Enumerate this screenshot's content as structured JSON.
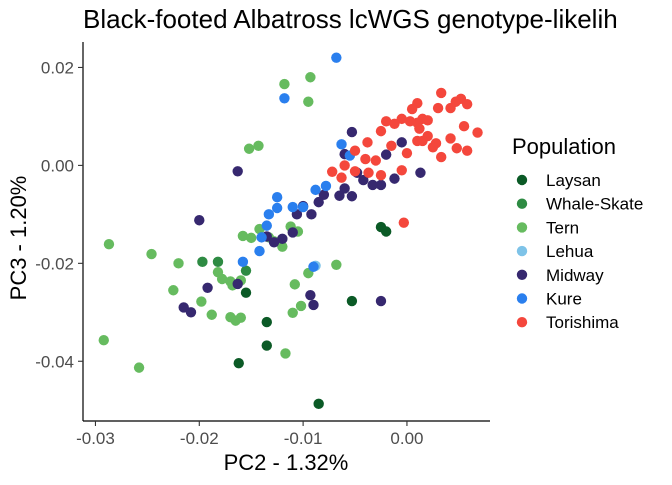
{
  "chart_data": {
    "type": "scatter",
    "title": "Black-footed Albatross lcWGS genotype-likelih",
    "xlabel": "PC2 - 1.32%",
    "ylabel": "PC3 - 1.20%",
    "xlim": [
      -0.0312,
      0.008
    ],
    "ylim": [
      -0.0522,
      0.0252
    ],
    "x_ticks": [
      -0.03,
      -0.02,
      -0.01,
      0.0
    ],
    "x_tick_labels": [
      "-0.03",
      "-0.02",
      "-0.01",
      "0.00"
    ],
    "y_ticks": [
      -0.04,
      -0.02,
      0.0,
      0.02
    ],
    "y_tick_labels": [
      "-0.04",
      "-0.02",
      "0.00",
      "0.02"
    ],
    "grid": false,
    "legend": {
      "title": "Population",
      "position": "right"
    },
    "series": [
      {
        "name": "Laysan",
        "color": "#0b5a26",
        "points": [
          [
            -0.0162,
            -0.0404
          ],
          [
            -0.0135,
            -0.032
          ],
          [
            -0.0135,
            -0.0368
          ],
          [
            -0.0085,
            -0.0487
          ],
          [
            -0.0053,
            -0.0277
          ],
          [
            -0.0025,
            -0.0126
          ],
          [
            -0.002,
            -0.0135
          ],
          [
            -0.0155,
            -0.026
          ]
        ]
      },
      {
        "name": "Whale-Skate",
        "color": "#2e8b43",
        "points": [
          [
            -0.0197,
            -0.0197
          ],
          [
            -0.0182,
            -0.0197
          ],
          [
            -0.0155,
            -0.0215
          ]
        ]
      },
      {
        "name": "Tern",
        "color": "#66bb5f",
        "points": [
          [
            -0.0093,
            0.018
          ],
          [
            -0.0118,
            0.0166
          ],
          [
            -0.0095,
            0.013
          ],
          [
            -0.0143,
            0.004
          ],
          [
            -0.0152,
            0.0034
          ],
          [
            -0.0287,
            -0.0161
          ],
          [
            -0.0246,
            -0.0181
          ],
          [
            -0.022,
            -0.02
          ],
          [
            -0.0158,
            -0.0144
          ],
          [
            -0.015,
            -0.0148
          ],
          [
            -0.0142,
            -0.013
          ],
          [
            -0.0133,
            -0.0147
          ],
          [
            -0.0128,
            -0.0155
          ],
          [
            -0.012,
            -0.0166
          ],
          [
            -0.0112,
            -0.0125
          ],
          [
            -0.0105,
            -0.0135
          ],
          [
            -0.0225,
            -0.0255
          ],
          [
            -0.0182,
            -0.0218
          ],
          [
            -0.0178,
            -0.0232
          ],
          [
            -0.017,
            -0.0237
          ],
          [
            -0.0168,
            -0.0245
          ],
          [
            -0.016,
            -0.0235
          ],
          [
            -0.0198,
            -0.0278
          ],
          [
            -0.0188,
            -0.0305
          ],
          [
            -0.017,
            -0.031
          ],
          [
            -0.0165,
            -0.0317
          ],
          [
            -0.016,
            -0.0311
          ],
          [
            -0.0108,
            -0.0243
          ],
          [
            -0.0095,
            -0.022
          ],
          [
            -0.0102,
            -0.0287
          ],
          [
            -0.011,
            -0.0301
          ],
          [
            -0.0117,
            -0.0384
          ],
          [
            -0.0068,
            -0.0203
          ],
          [
            -0.0292,
            -0.0357
          ],
          [
            -0.0258,
            -0.0413
          ]
        ]
      },
      {
        "name": "Lehua",
        "color": "#7ec3e8",
        "points": [
          [
            -0.0088,
            -0.0205
          ]
        ]
      },
      {
        "name": "Midway",
        "color": "#36286f",
        "points": [
          [
            -0.0053,
            0.0068
          ],
          [
            -0.006,
            0.0023
          ],
          [
            -0.0163,
            -0.0012
          ],
          [
            -0.006,
            -0.0047
          ],
          [
            -0.0065,
            -0.0062
          ],
          [
            -0.008,
            -0.006
          ],
          [
            -0.0085,
            -0.0075
          ],
          [
            -0.01,
            -0.0083
          ],
          [
            -0.0092,
            -0.01
          ],
          [
            -0.0106,
            -0.01
          ],
          [
            -0.011,
            -0.0137
          ],
          [
            -0.012,
            -0.015
          ],
          [
            -0.0128,
            -0.0157
          ],
          [
            -0.0135,
            -0.0145
          ],
          [
            -0.0053,
            -0.0063
          ],
          [
            -0.0042,
            -0.003
          ],
          [
            -0.0033,
            -0.004
          ],
          [
            -0.0025,
            -0.004
          ],
          [
            -0.0048,
            -0.0015
          ],
          [
            -0.0012,
            -0.0027
          ],
          [
            -0.0005,
            0.0047
          ],
          [
            -0.002,
            0.0022
          ],
          [
            0.0013,
            -0.0015
          ],
          [
            -0.02,
            -0.0112
          ],
          [
            -0.0215,
            -0.029
          ],
          [
            -0.0208,
            -0.03
          ],
          [
            -0.0192,
            -0.025
          ],
          [
            -0.0163,
            -0.0242
          ],
          [
            -0.0093,
            -0.0265
          ],
          [
            -0.009,
            -0.0285
          ],
          [
            -0.0025,
            -0.0277
          ]
        ]
      },
      {
        "name": "Kure",
        "color": "#2a7fee",
        "points": [
          [
            -0.0068,
            0.022
          ],
          [
            -0.0118,
            0.0137
          ],
          [
            -0.0063,
            0.0043
          ],
          [
            -0.0055,
            0.002
          ],
          [
            -0.0078,
            -0.0042
          ],
          [
            -0.0088,
            -0.005
          ],
          [
            -0.011,
            -0.0085
          ],
          [
            -0.01,
            -0.0085
          ],
          [
            -0.0125,
            -0.0065
          ],
          [
            -0.0125,
            -0.0087
          ],
          [
            -0.0133,
            -0.01
          ],
          [
            -0.0135,
            -0.0123
          ],
          [
            -0.014,
            -0.0147
          ],
          [
            -0.0142,
            -0.0175
          ],
          [
            -0.0158,
            -0.0197
          ],
          [
            -0.009,
            -0.0207
          ]
        ]
      },
      {
        "name": "Torishima",
        "color": "#f4473c",
        "points": [
          [
            0.0033,
            0.0148
          ],
          [
            0.0047,
            0.013
          ],
          [
            0.0052,
            0.0136
          ],
          [
            0.0058,
            0.0125
          ],
          [
            0.0042,
            0.0117
          ],
          [
            0.003,
            0.0117
          ],
          [
            0.001,
            0.0127
          ],
          [
            0.0005,
            0.0115
          ],
          [
            0.0015,
            0.0095
          ],
          [
            0.002,
            0.0092
          ],
          [
            0.001,
            0.0087
          ],
          [
            0.0003,
            0.009
          ],
          [
            -0.0005,
            0.0095
          ],
          [
            -0.0012,
            0.0085
          ],
          [
            -0.002,
            0.009
          ],
          [
            -0.0025,
            0.007
          ],
          [
            -0.0038,
            0.0047
          ],
          [
            -0.005,
            0.003
          ],
          [
            -0.004,
            0.0013
          ],
          [
            -0.003,
            0.001
          ],
          [
            -0.0015,
            0.004
          ],
          [
            0.0,
            0.0025
          ],
          [
            0.001,
            0.005
          ],
          [
            0.002,
            0.006
          ],
          [
            0.0028,
            0.0045
          ],
          [
            0.0042,
            0.0055
          ],
          [
            0.0055,
            0.008
          ],
          [
            0.0068,
            0.0067
          ],
          [
            0.0048,
            0.0035
          ],
          [
            0.0058,
            0.003
          ],
          [
            0.0033,
            0.0017
          ],
          [
            0.0025,
            0.0037
          ],
          [
            0.0015,
            0.005
          ],
          [
            0.0012,
            0.0075
          ],
          [
            -0.006,
            0.0
          ],
          [
            -0.005,
            -0.0012
          ],
          [
            -0.0063,
            -0.0025
          ],
          [
            -0.0072,
            -0.0013
          ],
          [
            -0.0037,
            -0.0015
          ],
          [
            -0.0025,
            -0.002
          ],
          [
            -0.0005,
            -0.001
          ],
          [
            -0.0003,
            -0.0117
          ]
        ]
      }
    ]
  }
}
